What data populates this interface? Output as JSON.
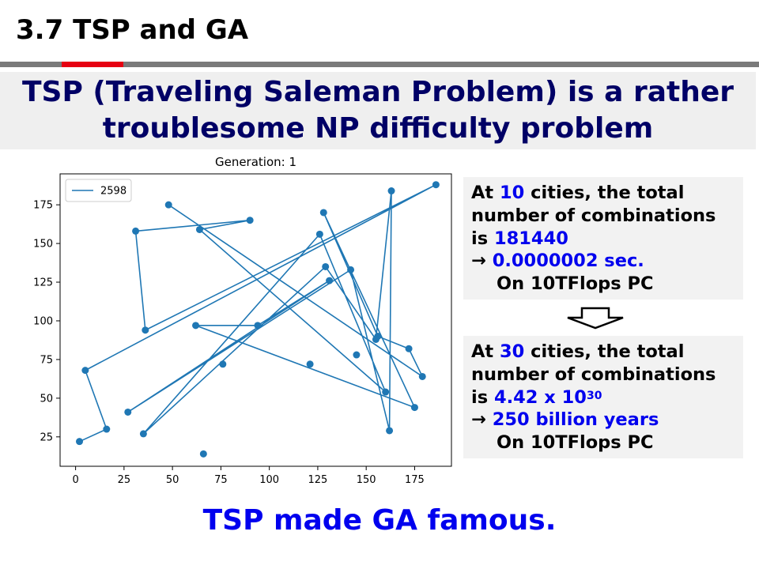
{
  "slide": {
    "title": "3.7 TSP and GA"
  },
  "headline": {
    "line1": "TSP (Traveling Saleman Problem) is a rather",
    "line2": "troublesome NP difficulty problem"
  },
  "box_top": {
    "l1_a": "At ",
    "l1_b": "10",
    "l1_c": " cities, the total",
    "l2": "number of combinations",
    "l3_a": "is ",
    "l3_b": "181440",
    "l4_arrow": "→ ",
    "l4_b": "0.0000002 sec.",
    "l5": "On 10TFlops PC"
  },
  "box_bottom": {
    "l1_a": "At ",
    "l1_b": "30",
    "l1_c": " cities, the total",
    "l2": "number of combinations",
    "l3_a": "is ",
    "l3_b": "4.42 x 10",
    "l3_sup": "30",
    "l4_arrow": "→ ",
    "l4_b": "250 billion years",
    "l5": "On 10TFlops PC"
  },
  "footer": {
    "text": "TSP made GA famous."
  },
  "colors": {
    "accent_red": "#e60012",
    "navy": "#000066",
    "blue": "#0000ee",
    "series": "#1f77b4"
  },
  "chart_data": {
    "type": "line",
    "title": "Generation: 1",
    "xlabel": "",
    "ylabel": "",
    "xlim": [
      -8,
      194
    ],
    "ylim": [
      6,
      195
    ],
    "xticks": [
      0,
      25,
      50,
      75,
      100,
      125,
      150,
      175
    ],
    "yticks": [
      25,
      50,
      75,
      100,
      125,
      150,
      175
    ],
    "grid": false,
    "legend": "top-left",
    "series": [
      {
        "name": "2598",
        "color": "#1f77b4",
        "marker": "circle",
        "x": [
          2,
          16,
          5,
          186,
          36,
          31,
          90,
          64,
          160,
          126,
          35,
          129,
          155,
          163,
          162,
          142,
          27,
          131,
          94,
          62,
          175,
          128,
          156,
          172,
          179,
          48
        ],
        "y": [
          22,
          30,
          68,
          188,
          94,
          158,
          165,
          159,
          54,
          156,
          27,
          135,
          88,
          184,
          29,
          133,
          41,
          126,
          97,
          97,
          44,
          170,
          90,
          82,
          64,
          175
        ]
      },
      {
        "name": "",
        "color": "#1f77b4",
        "marker": "circle",
        "line": false,
        "x": [
          76,
          66,
          121,
          145
        ],
        "y": [
          72,
          14,
          72,
          78
        ]
      }
    ]
  }
}
